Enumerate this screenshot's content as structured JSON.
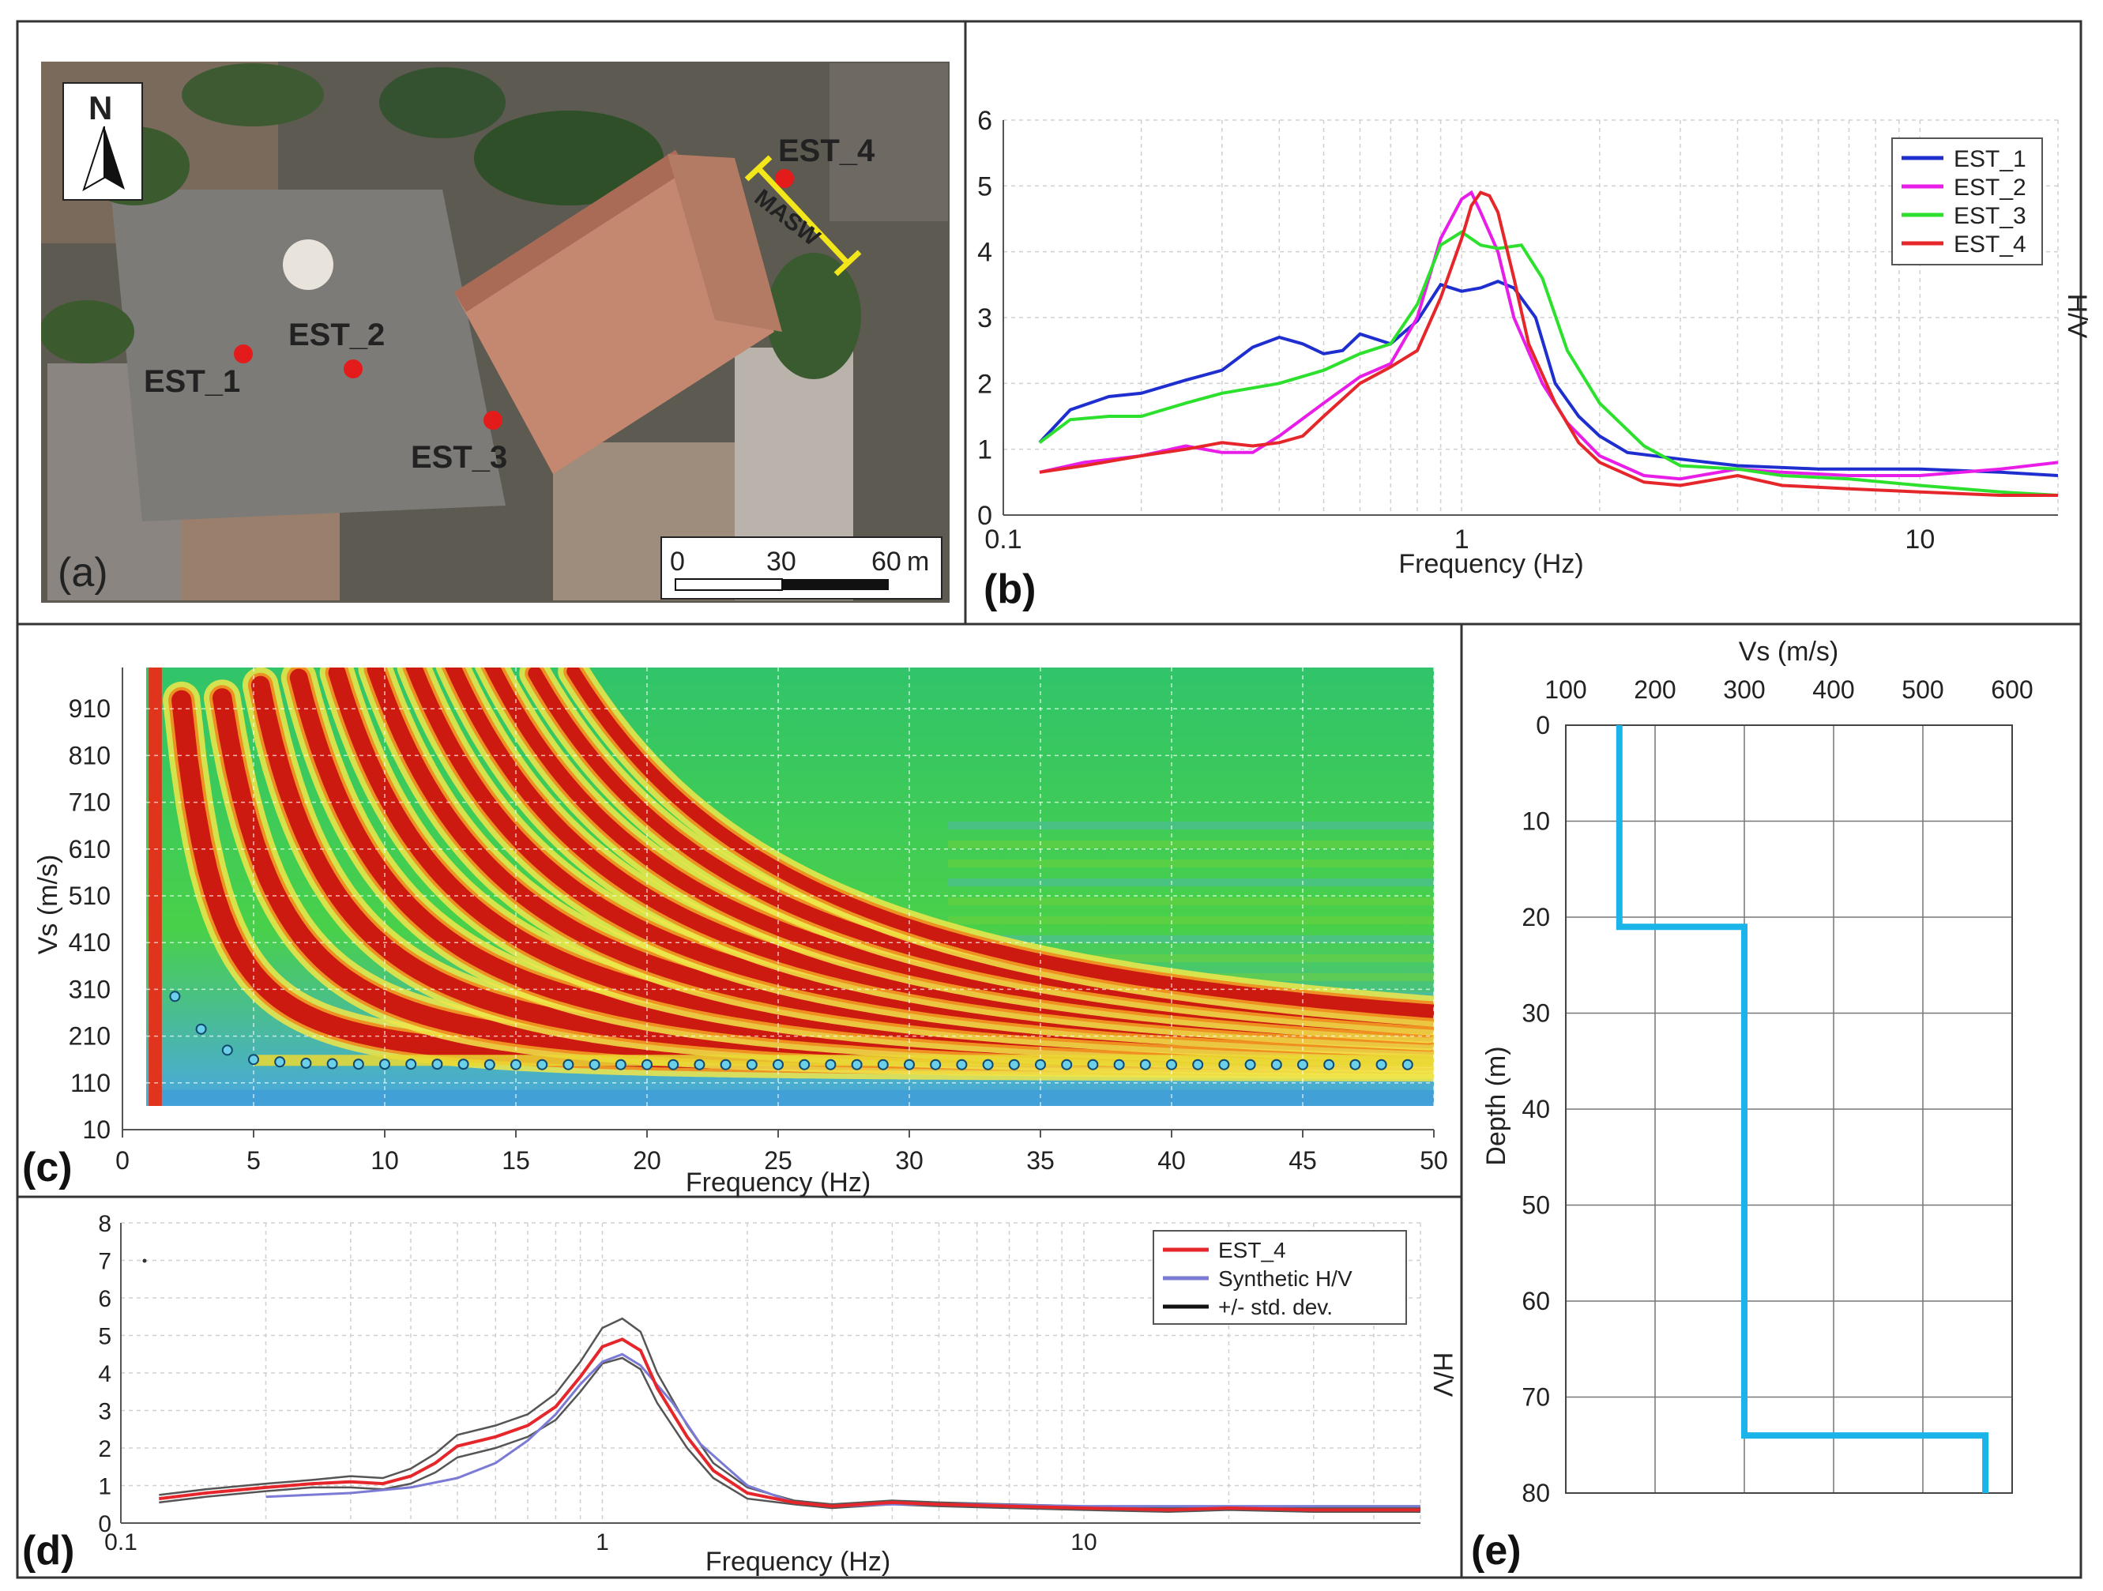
{
  "panels": {
    "a": {
      "label": "(a)",
      "north": "N",
      "scale_ticks": [
        "0",
        "30",
        "60"
      ],
      "scale_unit": "m",
      "stations": [
        "EST_1",
        "EST_2",
        "EST_3",
        "EST_4"
      ],
      "masw_label": "MASW"
    },
    "b": {
      "label": "(b)"
    },
    "c": {
      "label": "(c)"
    },
    "d": {
      "label": "(d)"
    },
    "e": {
      "label": "(e)"
    }
  },
  "colors": {
    "est1": "#1f2fcf",
    "est2": "#e81ee8",
    "est3": "#2ee02e",
    "est4": "#e5262a",
    "synthetic": "#7b7bd6",
    "stddev": "#555555",
    "profile": "#1ab4e8",
    "station_marker": "#e31b1b"
  },
  "chart_data": [
    {
      "id": "b",
      "type": "line",
      "xscale": "log",
      "xlabel": "Frequency (Hz)",
      "ylabel": "H/V",
      "xlim": [
        0.1,
        20
      ],
      "ylim": [
        0,
        6
      ],
      "xticks": [
        "0.1",
        "1",
        "10"
      ],
      "yticks": [
        "0",
        "1",
        "2",
        "3",
        "4",
        "5",
        "6"
      ],
      "legend": "top-right",
      "series": [
        {
          "name": "EST_1",
          "x": [
            0.12,
            0.14,
            0.17,
            0.2,
            0.25,
            0.3,
            0.35,
            0.4,
            0.45,
            0.5,
            0.55,
            0.6,
            0.7,
            0.8,
            0.9,
            1.0,
            1.1,
            1.2,
            1.3,
            1.45,
            1.6,
            1.8,
            2.0,
            2.3,
            3.0,
            4.0,
            6.0,
            10.0,
            15.0,
            20.0
          ],
          "y": [
            1.1,
            1.6,
            1.8,
            1.85,
            2.05,
            2.2,
            2.55,
            2.7,
            2.6,
            2.45,
            2.5,
            2.75,
            2.6,
            2.95,
            3.5,
            3.4,
            3.45,
            3.55,
            3.45,
            3.0,
            2.0,
            1.5,
            1.2,
            0.95,
            0.85,
            0.75,
            0.7,
            0.7,
            0.65,
            0.6
          ]
        },
        {
          "name": "EST_2",
          "x": [
            0.12,
            0.15,
            0.2,
            0.25,
            0.3,
            0.35,
            0.4,
            0.5,
            0.6,
            0.7,
            0.8,
            0.9,
            1.0,
            1.05,
            1.1,
            1.2,
            1.3,
            1.5,
            1.7,
            2.0,
            2.5,
            3.0,
            4.0,
            5.0,
            7.0,
            10.0,
            15.0,
            20.0
          ],
          "y": [
            0.65,
            0.8,
            0.9,
            1.05,
            0.95,
            0.95,
            1.2,
            1.7,
            2.1,
            2.3,
            3.0,
            4.2,
            4.8,
            4.9,
            4.6,
            4.0,
            3.0,
            2.0,
            1.4,
            0.9,
            0.6,
            0.55,
            0.7,
            0.65,
            0.6,
            0.6,
            0.7,
            0.8
          ]
        },
        {
          "name": "EST_3",
          "x": [
            0.12,
            0.14,
            0.17,
            0.2,
            0.25,
            0.3,
            0.4,
            0.5,
            0.6,
            0.7,
            0.8,
            0.9,
            1.0,
            1.1,
            1.2,
            1.35,
            1.5,
            1.7,
            2.0,
            2.5,
            3.0,
            4.0,
            5.0,
            7.0,
            10.0,
            15.0,
            20.0
          ],
          "y": [
            1.1,
            1.45,
            1.5,
            1.5,
            1.7,
            1.85,
            2.0,
            2.2,
            2.45,
            2.6,
            3.2,
            4.1,
            4.3,
            4.1,
            4.05,
            4.1,
            3.6,
            2.5,
            1.7,
            1.05,
            0.75,
            0.7,
            0.6,
            0.55,
            0.45,
            0.35,
            0.3
          ]
        },
        {
          "name": "EST_4",
          "x": [
            0.12,
            0.15,
            0.2,
            0.25,
            0.3,
            0.35,
            0.4,
            0.45,
            0.5,
            0.6,
            0.7,
            0.8,
            0.9,
            1.0,
            1.05,
            1.1,
            1.15,
            1.2,
            1.3,
            1.4,
            1.6,
            1.8,
            2.0,
            2.5,
            3.0,
            4.0,
            5.0,
            7.0,
            10.0,
            15.0,
            20.0
          ],
          "y": [
            0.65,
            0.75,
            0.9,
            1.0,
            1.1,
            1.05,
            1.1,
            1.2,
            1.5,
            2.0,
            2.25,
            2.5,
            3.3,
            4.2,
            4.7,
            4.9,
            4.85,
            4.6,
            3.6,
            2.6,
            1.7,
            1.1,
            0.8,
            0.5,
            0.45,
            0.6,
            0.45,
            0.4,
            0.35,
            0.3,
            0.3
          ]
        }
      ]
    },
    {
      "id": "c",
      "type": "heatmap",
      "xlabel": "Frequency (Hz)",
      "ylabel": "Vs (m/s)",
      "xlim": [
        0,
        50
      ],
      "ylim": [
        10,
        1000
      ],
      "xticks": [
        "0",
        "5",
        "10",
        "15",
        "20",
        "25",
        "30",
        "35",
        "40",
        "45",
        "50"
      ],
      "yticks": [
        "10",
        "110",
        "210",
        "310",
        "410",
        "510",
        "610",
        "710",
        "810",
        "910"
      ],
      "picks": {
        "x": [
          2,
          3,
          4,
          5,
          6,
          7,
          8,
          9,
          10,
          11,
          12,
          13,
          14,
          15,
          16,
          17,
          18,
          19,
          20,
          21,
          22,
          23,
          24,
          25,
          26,
          27,
          28,
          29,
          30,
          31,
          32,
          33,
          34,
          35,
          36,
          37,
          38,
          39,
          40,
          41,
          42,
          43,
          44,
          45,
          46,
          47,
          48,
          49
        ],
        "y": [
          295,
          225,
          180,
          160,
          155,
          152,
          151,
          150,
          150,
          150,
          150,
          150,
          149,
          149,
          149,
          149,
          149,
          149,
          149,
          149,
          149,
          149,
          149,
          149,
          149,
          149,
          149,
          149,
          149,
          149,
          149,
          149,
          149,
          149,
          149,
          149,
          149,
          149,
          149,
          149,
          149,
          149,
          149,
          149,
          149,
          149,
          149,
          149
        ]
      }
    },
    {
      "id": "d",
      "type": "line",
      "xscale": "log",
      "xlabel": "Frequency (Hz)",
      "ylabel": "H/V",
      "xlim": [
        0.1,
        50
      ],
      "ylim": [
        0,
        8
      ],
      "xticks": [
        "0.1",
        "1",
        "10"
      ],
      "yticks": [
        "0",
        "1",
        "2",
        "3",
        "4",
        "5",
        "6",
        "7",
        "8"
      ],
      "legend": "top-right",
      "series": [
        {
          "name": "EST_4",
          "x": [
            0.12,
            0.15,
            0.2,
            0.25,
            0.3,
            0.35,
            0.4,
            0.45,
            0.5,
            0.6,
            0.7,
            0.8,
            0.9,
            1.0,
            1.1,
            1.2,
            1.3,
            1.5,
            1.7,
            2.0,
            2.5,
            3.0,
            4.0,
            5.0,
            7.0,
            10.0,
            15.0,
            20.0,
            30.0,
            40.0,
            50.0
          ],
          "y": [
            0.65,
            0.8,
            0.95,
            1.05,
            1.1,
            1.05,
            1.25,
            1.6,
            2.05,
            2.3,
            2.6,
            3.1,
            3.9,
            4.7,
            4.9,
            4.6,
            3.6,
            2.3,
            1.4,
            0.8,
            0.55,
            0.45,
            0.55,
            0.5,
            0.45,
            0.4,
            0.35,
            0.4,
            0.35,
            0.35,
            0.35
          ]
        },
        {
          "name": "Synthetic H/V",
          "x": [
            0.2,
            0.3,
            0.4,
            0.5,
            0.6,
            0.7,
            0.8,
            0.9,
            1.0,
            1.1,
            1.2,
            1.4,
            1.6,
            2.0,
            2.5,
            3.0,
            4.0,
            6.0,
            10.0,
            20.0,
            50.0
          ],
          "y": [
            0.7,
            0.8,
            0.95,
            1.2,
            1.6,
            2.2,
            2.9,
            3.7,
            4.3,
            4.5,
            4.2,
            3.2,
            2.1,
            1.0,
            0.55,
            0.45,
            0.5,
            0.5,
            0.45,
            0.45,
            0.45
          ]
        },
        {
          "name": "+/- std. dev.",
          "x": [
            0.12,
            0.15,
            0.2,
            0.25,
            0.3,
            0.35,
            0.4,
            0.45,
            0.5,
            0.6,
            0.7,
            0.8,
            0.9,
            1.0,
            1.1,
            1.2,
            1.3,
            1.5,
            1.7,
            2.0,
            2.5,
            3.0,
            4.0,
            5.0,
            7.0,
            10.0,
            15.0,
            20.0,
            30.0,
            40.0,
            50.0
          ],
          "y": [
            0.75,
            0.9,
            1.05,
            1.15,
            1.25,
            1.2,
            1.45,
            1.85,
            2.35,
            2.6,
            2.9,
            3.45,
            4.3,
            5.2,
            5.45,
            5.1,
            4.0,
            2.6,
            1.6,
            0.95,
            0.6,
            0.5,
            0.6,
            0.55,
            0.5,
            0.45,
            0.4,
            0.45,
            0.4,
            0.4,
            0.4
          ],
          "y_lower": [
            0.55,
            0.7,
            0.85,
            0.95,
            0.95,
            0.9,
            1.05,
            1.35,
            1.75,
            2.0,
            2.3,
            2.75,
            3.5,
            4.25,
            4.4,
            4.1,
            3.2,
            2.0,
            1.2,
            0.65,
            0.5,
            0.4,
            0.5,
            0.45,
            0.4,
            0.35,
            0.3,
            0.35,
            0.3,
            0.3,
            0.3
          ]
        }
      ]
    },
    {
      "id": "e",
      "type": "line",
      "xlabel": "Vs (m/s)",
      "ylabel": "Depth (m)",
      "xlim": [
        100,
        600
      ],
      "ylim": [
        0,
        80
      ],
      "xticks": [
        "100",
        "200",
        "300",
        "400",
        "500",
        "600"
      ],
      "yticks": [
        "0",
        "10",
        "20",
        "30",
        "40",
        "50",
        "60",
        "70",
        "80"
      ],
      "series": [
        {
          "name": "Vs profile",
          "x": [
            160,
            160,
            300,
            300,
            570,
            570
          ],
          "y": [
            0,
            21,
            21,
            74,
            74,
            80
          ]
        }
      ]
    }
  ]
}
